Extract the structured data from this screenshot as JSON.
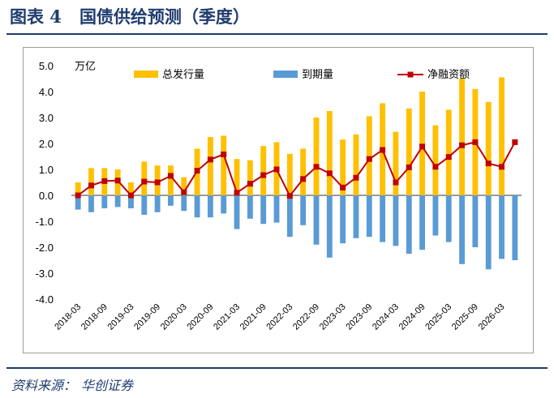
{
  "figure": {
    "label": "图表 4",
    "title": "国债供给预测（季度）",
    "source_label": "资料来源：",
    "source": "华创证券"
  },
  "colors": {
    "issuance": "#ffc000",
    "maturity": "#5b9bd5",
    "net": "#c00000",
    "title": "#1f3c6e"
  },
  "chart_data": {
    "type": "bar",
    "unit": "万亿",
    "ylim": [
      -4.0,
      5.0
    ],
    "yticks": [
      "5.0",
      "4.0",
      "3.0",
      "2.0",
      "1.0",
      "0.0",
      "-1.0",
      "-2.0",
      "-3.0",
      "-4.0"
    ],
    "grid": false,
    "legend_position": "top",
    "x": [
      "2018-03",
      "2018-06",
      "2018-09",
      "2018-12",
      "2019-03",
      "2019-06",
      "2019-09",
      "2019-12",
      "2020-03",
      "2020-06",
      "2020-09",
      "2020-12",
      "2021-03",
      "2021-06",
      "2021-09",
      "2021-12",
      "2022-03",
      "2022-06",
      "2022-09",
      "2022-12",
      "2023-03",
      "2023-06",
      "2023-09",
      "2023-12",
      "2024-03",
      "2024-06",
      "2024-09",
      "2024-12",
      "2025-03",
      "2025-06",
      "2025-09",
      "2025-12",
      "2026-03",
      "2026-06"
    ],
    "xtick_labels": [
      "2018-03",
      "2018-09",
      "2019-03",
      "2019-09",
      "2020-03",
      "2020-09",
      "2021-03",
      "2021-09",
      "2022-03",
      "2022-09",
      "2023-03",
      "2023-09",
      "2024-03",
      "2024-09",
      "2025-03",
      "2025-09",
      "2026-03"
    ],
    "series": [
      {
        "name": "总发行量",
        "type": "bar",
        "values": [
          0.5,
          1.05,
          1.05,
          1.0,
          0.5,
          1.3,
          1.15,
          1.15,
          0.7,
          1.8,
          2.25,
          2.3,
          1.4,
          1.35,
          1.9,
          2.05,
          1.6,
          1.8,
          3.0,
          3.25,
          2.15,
          2.35,
          3.05,
          3.55,
          2.45,
          3.35,
          4.0,
          2.7,
          3.3,
          4.5,
          4.1,
          3.6,
          4.55,
          0
        ]
      },
      {
        "name": "到期量",
        "type": "bar",
        "values": [
          -0.55,
          -0.65,
          -0.5,
          -0.45,
          -0.5,
          -0.75,
          -0.65,
          -0.4,
          -0.6,
          -0.85,
          -0.85,
          -0.7,
          -1.3,
          -0.9,
          -1.1,
          -1.05,
          -1.6,
          -1.15,
          -1.9,
          -2.4,
          -1.85,
          -1.65,
          -1.6,
          -1.8,
          -1.95,
          -2.25,
          -2.1,
          -1.55,
          -1.8,
          -2.65,
          -2.0,
          -2.85,
          -2.45,
          -2.5
        ]
      },
      {
        "name": "净融资额",
        "type": "line",
        "values": [
          0.0,
          0.38,
          0.55,
          0.57,
          0.0,
          0.53,
          0.5,
          0.75,
          0.12,
          0.95,
          1.38,
          1.58,
          0.1,
          0.45,
          0.78,
          1.0,
          -0.02,
          0.63,
          1.1,
          0.85,
          0.3,
          0.68,
          1.4,
          1.75,
          0.5,
          1.08,
          1.88,
          1.1,
          1.48,
          1.93,
          2.05,
          1.23,
          1.1,
          2.05
        ]
      }
    ]
  }
}
